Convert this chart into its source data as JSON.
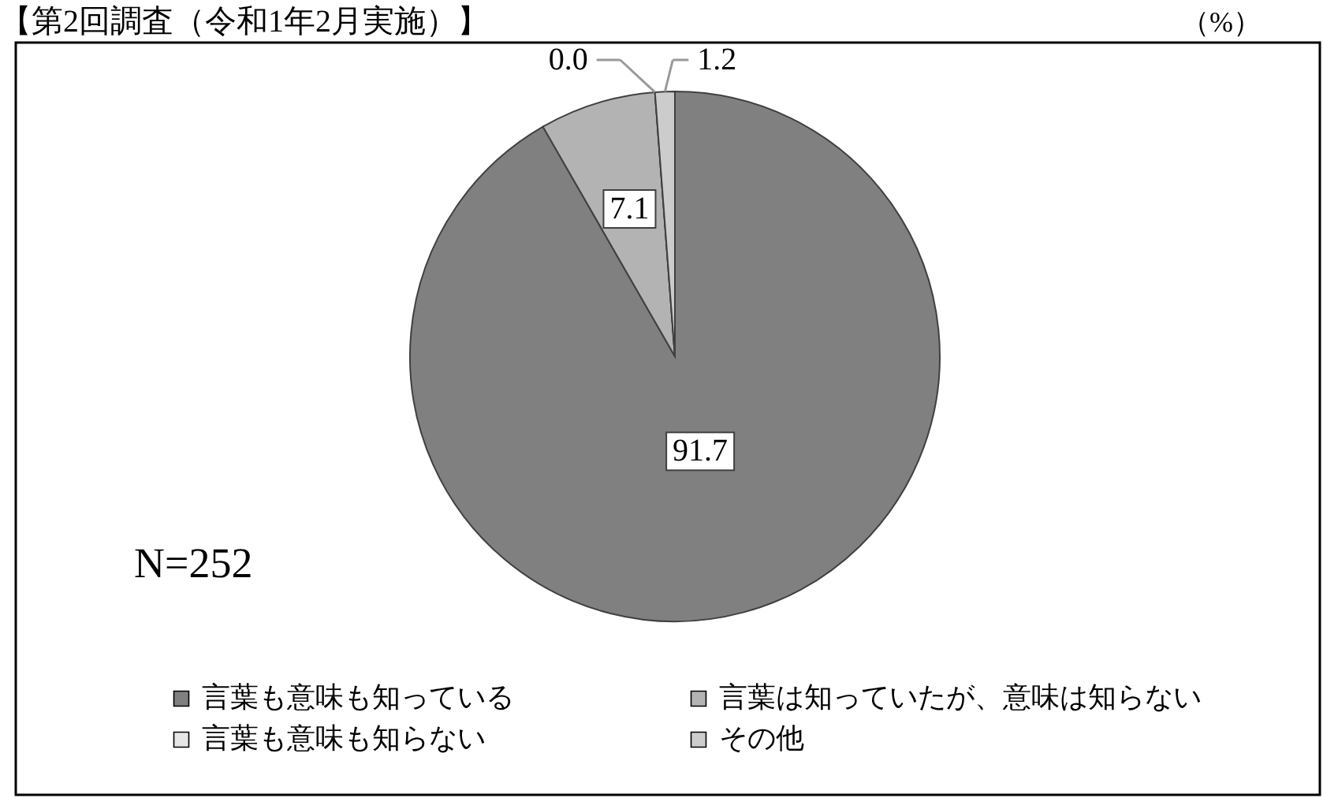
{
  "chart_data": {
    "type": "pie",
    "title": "【第2回調査（令和1年2月実施）】",
    "categories": [
      "言葉も意味も知っている",
      "言葉は知っていたが、意味は知らない",
      "言葉も意味も知らない",
      "その他"
    ],
    "values": [
      91.7,
      7.1,
      0.0,
      1.2
    ],
    "colors": [
      "#808080",
      "#b3b3b3",
      "#e6e6e6",
      "#cccccc"
    ],
    "value_labels": [
      "91.7",
      "7.1",
      "0.0",
      "1.2"
    ],
    "legend": "bottom",
    "annotations": [
      "N=252",
      "（%）"
    ]
  }
}
